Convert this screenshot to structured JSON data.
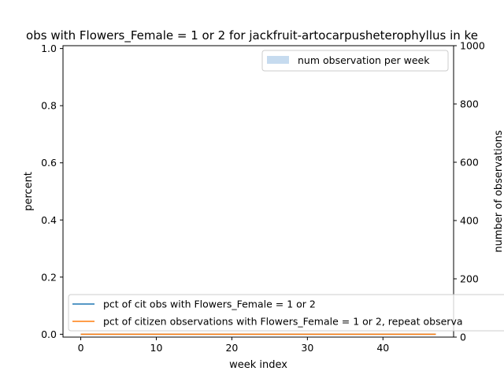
{
  "chart_data": {
    "type": "line",
    "title": "obs with Flowers_Female = 1 or 2 for jackfruit-artocarpusheterophyllus in ke",
    "xlabel": "week index",
    "ylabel": "percent",
    "y2label": "number of observations",
    "xlim": [
      -2.35,
      49.35
    ],
    "ylim": [
      -0.01,
      1.01
    ],
    "y2lim": [
      0,
      1000
    ],
    "x_ticks": [
      "0",
      "10",
      "20",
      "30",
      "40"
    ],
    "y_ticks": [
      "0.0",
      "0.2",
      "0.4",
      "0.6",
      "0.8",
      "1.0"
    ],
    "y2_ticks": [
      "0",
      "200",
      "400",
      "600",
      "800",
      "1000"
    ],
    "grid": false,
    "bars": {
      "name": "num observation per week",
      "color": "#c6dbef",
      "x": [],
      "values": []
    },
    "series": [
      {
        "name": "pct of cit obs with Flowers_Female = 1 or 2",
        "color": "#1f77b4",
        "x": [
          0,
          47
        ],
        "values": [
          0,
          0
        ]
      },
      {
        "name": "pct of citizen observations with Flowers_Female = 1 or 2, repeat observa",
        "color": "#ff7f0e",
        "x": [
          0,
          47
        ],
        "values": [
          0,
          0
        ]
      }
    ],
    "legend_upper": "top-right",
    "legend_lower": "bottom-left"
  }
}
